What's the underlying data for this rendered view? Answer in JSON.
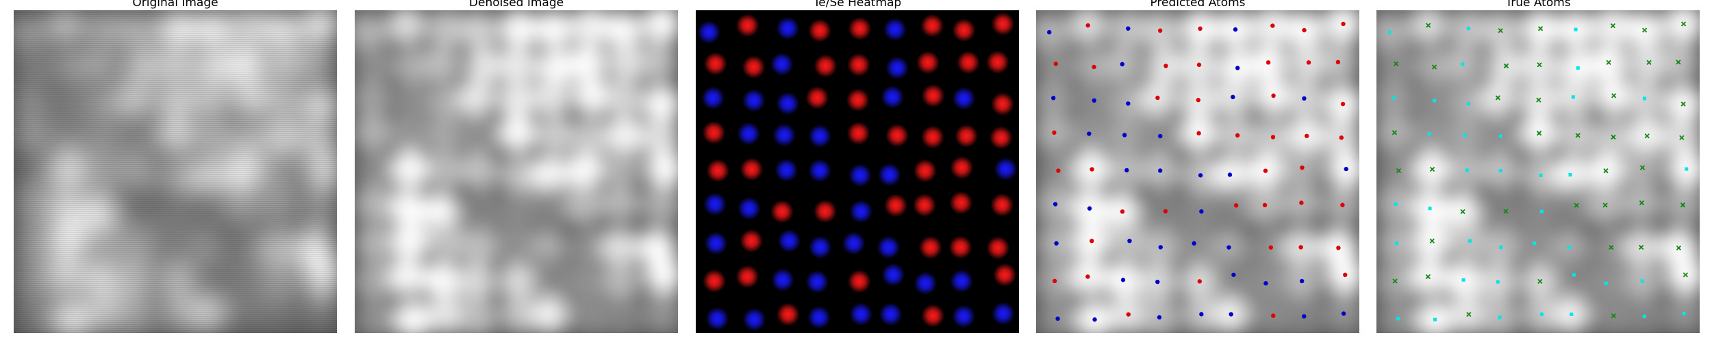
{
  "panels": [
    {
      "title": "Original Image",
      "kind": "grayscale",
      "variant": "original"
    },
    {
      "title": "Denoised Image",
      "kind": "grayscale",
      "variant": "denoised"
    },
    {
      "title": "Te/Se Heatmap",
      "kind": "heatmap"
    },
    {
      "title": "Predicted Atoms",
      "kind": "overlay",
      "variant": "predicted"
    },
    {
      "title": "True Atoms",
      "kind": "overlay",
      "variant": "true"
    }
  ],
  "colors": {
    "heatmap_red": "#ff1a1a",
    "heatmap_blue": "#1a1aff",
    "pred_te": "#e00000",
    "pred_se": "#0000cc",
    "true_te": "#00e5e5",
    "true_se": "#118811"
  },
  "heatmap_grid": [
    "BRBRRBRRR",
    "RRBRRBRRR",
    "BBBRRBRBR",
    "RBBBRRRRR",
    "RRBBBBRRB",
    "BBRRBRRRR",
    "BRBBBBRRR",
    "RRBBRBBBR",
    "BBRBBBRBB"
  ]
}
